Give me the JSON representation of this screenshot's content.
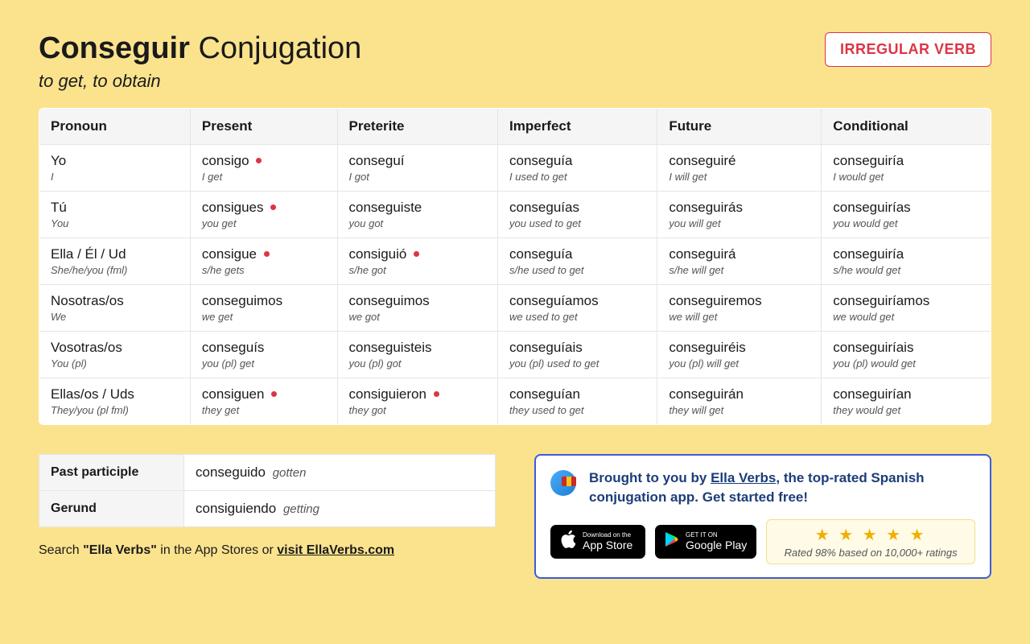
{
  "header": {
    "verb": "Conseguir",
    "suffix": "Conjugation",
    "translation": "to get, to obtain",
    "badge": "IRREGULAR VERB"
  },
  "columns": [
    "Pronoun",
    "Present",
    "Preterite",
    "Imperfect",
    "Future",
    "Conditional"
  ],
  "rows": [
    {
      "pronoun": "Yo",
      "pronoun_tr": "I",
      "cells": [
        {
          "v": "consigo",
          "tr": "I get",
          "irr": true
        },
        {
          "v": "conseguí",
          "tr": "I got",
          "irr": false
        },
        {
          "v": "conseguía",
          "tr": "I used to get",
          "irr": false
        },
        {
          "v": "conseguiré",
          "tr": "I will get",
          "irr": false
        },
        {
          "v": "conseguiría",
          "tr": "I would get",
          "irr": false
        }
      ]
    },
    {
      "pronoun": "Tú",
      "pronoun_tr": "You",
      "cells": [
        {
          "v": "consigues",
          "tr": "you get",
          "irr": true
        },
        {
          "v": "conseguiste",
          "tr": "you got",
          "irr": false
        },
        {
          "v": "conseguías",
          "tr": "you used to get",
          "irr": false
        },
        {
          "v": "conseguirás",
          "tr": "you will get",
          "irr": false
        },
        {
          "v": "conseguirías",
          "tr": "you would get",
          "irr": false
        }
      ]
    },
    {
      "pronoun": "Ella / Él / Ud",
      "pronoun_tr": "She/he/you (fml)",
      "cells": [
        {
          "v": "consigue",
          "tr": "s/he gets",
          "irr": true
        },
        {
          "v": "consiguió",
          "tr": "s/he got",
          "irr": true
        },
        {
          "v": "conseguía",
          "tr": "s/he used to get",
          "irr": false
        },
        {
          "v": "conseguirá",
          "tr": "s/he will get",
          "irr": false
        },
        {
          "v": "conseguiría",
          "tr": "s/he would get",
          "irr": false
        }
      ]
    },
    {
      "pronoun": "Nosotras/os",
      "pronoun_tr": "We",
      "cells": [
        {
          "v": "conseguimos",
          "tr": "we get",
          "irr": false
        },
        {
          "v": "conseguimos",
          "tr": "we got",
          "irr": false
        },
        {
          "v": "conseguíamos",
          "tr": "we used to get",
          "irr": false
        },
        {
          "v": "conseguiremos",
          "tr": "we will get",
          "irr": false
        },
        {
          "v": "conseguiríamos",
          "tr": "we would get",
          "irr": false
        }
      ]
    },
    {
      "pronoun": "Vosotras/os",
      "pronoun_tr": "You (pl)",
      "cells": [
        {
          "v": "conseguís",
          "tr": "you (pl) get",
          "irr": false
        },
        {
          "v": "conseguisteis",
          "tr": "you (pl) got",
          "irr": false
        },
        {
          "v": "conseguíais",
          "tr": "you (pl) used to get",
          "irr": false
        },
        {
          "v": "conseguiréis",
          "tr": "you (pl) will get",
          "irr": false
        },
        {
          "v": "conseguiríais",
          "tr": "you (pl) would get",
          "irr": false
        }
      ]
    },
    {
      "pronoun": "Ellas/os / Uds",
      "pronoun_tr": "They/you (pl fml)",
      "cells": [
        {
          "v": "consiguen",
          "tr": "they get",
          "irr": true
        },
        {
          "v": "consiguieron",
          "tr": "they got",
          "irr": true
        },
        {
          "v": "conseguían",
          "tr": "they used to get",
          "irr": false
        },
        {
          "v": "conseguirán",
          "tr": "they will get",
          "irr": false
        },
        {
          "v": "conseguirían",
          "tr": "they would get",
          "irr": false
        }
      ]
    }
  ],
  "forms": {
    "pp_label": "Past participle",
    "pp_value": "conseguido",
    "pp_tr": "gotten",
    "ger_label": "Gerund",
    "ger_value": "consiguiendo",
    "ger_tr": "getting"
  },
  "search_note": {
    "prefix": "Search ",
    "quoted": "\"Ella Verbs\"",
    "mid": " in the App Stores or ",
    "link": "visit EllaVerbs.com"
  },
  "promo": {
    "text_prefix": "Brought to you by ",
    "brand": "Ella Verbs",
    "text_suffix": ", the top-rated Spanish conjugation app. Get started free!",
    "appstore_small": "Download on the",
    "appstore_big": "App Store",
    "gplay_small": "GET IT ON",
    "gplay_big": "Google Play",
    "rating_text": "Rated 98% based on 10,000+ ratings"
  },
  "colors": {
    "bg": "#FBE38E",
    "badge_border": "#dc3545",
    "promo_border": "#3b5bdb",
    "star": "#f1b000"
  }
}
